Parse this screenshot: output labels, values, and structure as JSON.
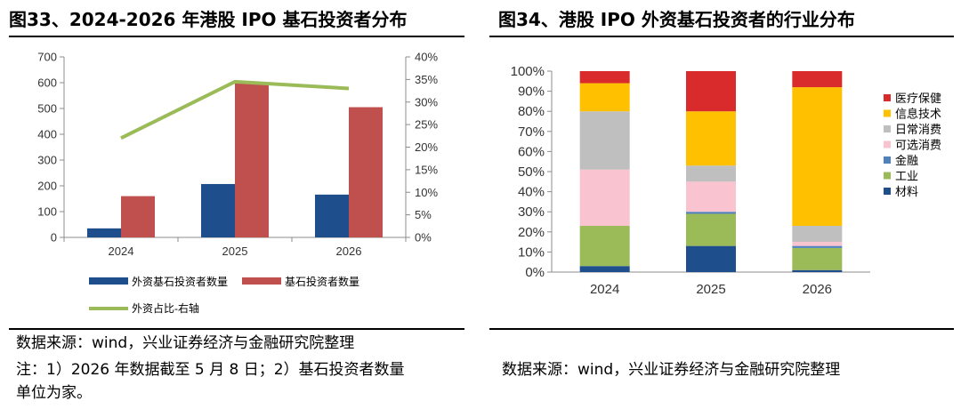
{
  "fig33": {
    "title": "图33、2024-2026 年港股 IPO 基石投资者分布",
    "source": "数据来源：wind，兴业证券经济与金融研究院整理",
    "note_line1": "注：1）2026 年数据截至 5 月 8 日；2）基石投资者数量",
    "note_line2": "单位为家。"
  },
  "fig34": {
    "title": "图34、港股 IPO 外资基石投资者的行业分布",
    "source": "数据来源：wind，兴业证券经济与金融研究院整理"
  },
  "chart_data": [
    {
      "type": "bar",
      "combo": "bar+line",
      "categories": [
        "2024",
        "2025",
        "2026"
      ],
      "series": [
        {
          "name": "外资基石投资者数量",
          "values": [
            35,
            207,
            166
          ],
          "color": "#1f4e8c",
          "axis": "left"
        },
        {
          "name": "基石投资者数量",
          "values": [
            160,
            600,
            505
          ],
          "color": "#c0504d",
          "axis": "left"
        },
        {
          "name": "外资占比-右轴",
          "type": "line",
          "values": [
            0.22,
            0.345,
            0.33
          ],
          "color": "#9bbb59",
          "axis": "right"
        }
      ],
      "ylim": [
        0,
        700
      ],
      "yticks": [
        "0",
        "100",
        "200",
        "300",
        "400",
        "500",
        "600",
        "700"
      ],
      "y2lim": [
        0,
        0.4
      ],
      "y2ticks": [
        "0%",
        "5%",
        "10%",
        "15%",
        "20%",
        "25%",
        "30%",
        "35%",
        "40%"
      ],
      "legend": "bottom",
      "grid": false
    },
    {
      "type": "bar",
      "stacked": "percent",
      "categories": [
        "2024",
        "2025",
        "2026"
      ],
      "series": [
        {
          "name": "材料",
          "values": [
            0.03,
            0.13,
            0.01
          ],
          "color": "#1f4e8c"
        },
        {
          "name": "工业",
          "values": [
            0.2,
            0.16,
            0.11
          ],
          "color": "#9bbb59"
        },
        {
          "name": "金融",
          "values": [
            0.0,
            0.01,
            0.01
          ],
          "color": "#4f81bd"
        },
        {
          "name": "可选消费",
          "values": [
            0.28,
            0.15,
            0.02
          ],
          "color": "#f9c3cf"
        },
        {
          "name": "日常消费",
          "values": [
            0.29,
            0.08,
            0.08
          ],
          "color": "#bfbfbf"
        },
        {
          "name": "信息技术",
          "values": [
            0.14,
            0.27,
            0.69
          ],
          "color": "#ffc000"
        },
        {
          "name": "医疗保健",
          "values": [
            0.06,
            0.2,
            0.08
          ],
          "color": "#d92b2b"
        }
      ],
      "legend_order": [
        "医疗保健",
        "信息技术",
        "日常消费",
        "可选消费",
        "金融",
        "工业",
        "材料"
      ],
      "ylim": [
        0,
        1
      ],
      "yticks": [
        "0%",
        "10%",
        "20%",
        "30%",
        "40%",
        "50%",
        "60%",
        "70%",
        "80%",
        "90%",
        "100%"
      ],
      "legend": "right",
      "grid": false
    }
  ]
}
